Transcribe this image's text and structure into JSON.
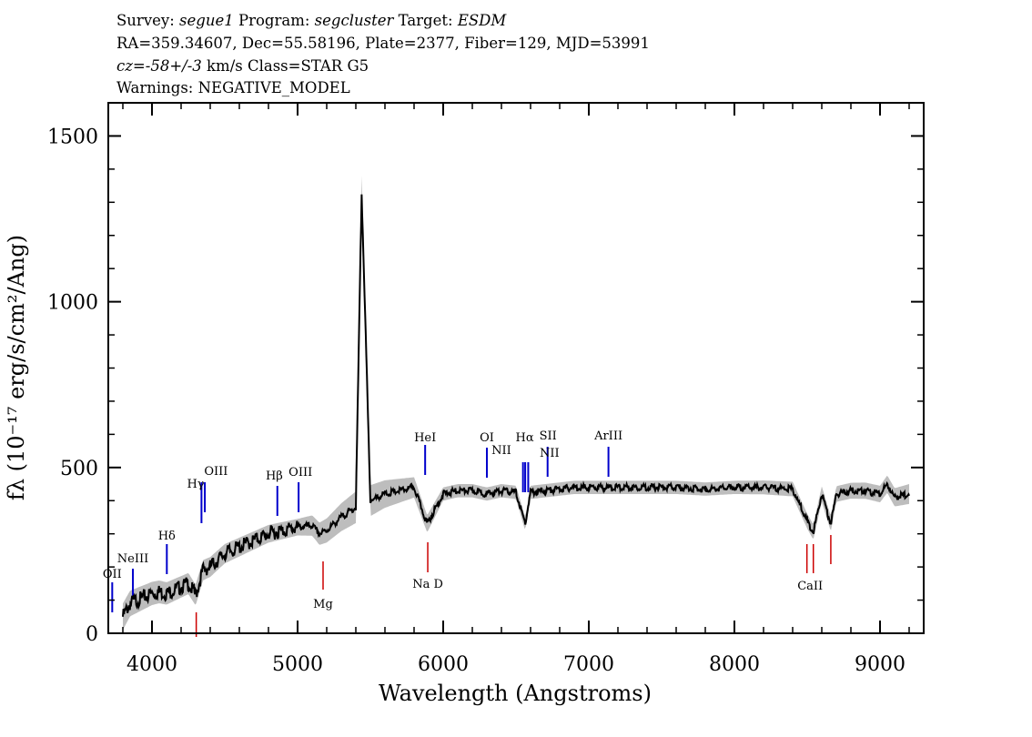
{
  "header": {
    "survey_label": "Survey:",
    "survey": "segue1",
    "program_label": "Program:",
    "program": "segcluster",
    "target_label": "Target:",
    "target": "ESDM",
    "coords": "RA=359.34607, Dec=55.58196, Plate=2377, Fiber=129, MJD=53991",
    "cz": "cz=-58+/-3",
    "cz_units": "km/s",
    "class": "Class=STAR G5",
    "warnings": "Warnings: NEGATIVE_MODEL"
  },
  "chart_data": {
    "type": "line",
    "xlabel": "Wavelength (Angstroms)",
    "ylabel": "fλ (10⁻¹⁷ erg/s/cm²/Ang)",
    "xlim": [
      3700,
      9300
    ],
    "ylim": [
      0,
      1600
    ],
    "xticks": [
      4000,
      5000,
      6000,
      7000,
      8000,
      9000
    ],
    "yticks": [
      0,
      500,
      1000,
      1500
    ],
    "series": [
      {
        "name": "flux",
        "color": "#000000",
        "x": [
          3800,
          3850,
          3900,
          3950,
          4000,
          4050,
          4100,
          4150,
          4200,
          4250,
          4300,
          4350,
          4400,
          4450,
          4500,
          4600,
          4700,
          4800,
          4900,
          5000,
          5100,
          5150,
          5200,
          5300,
          5400,
          5440,
          5500,
          5600,
          5700,
          5800,
          5890,
          6000,
          6100,
          6200,
          6300,
          6400,
          6500,
          6563,
          6600,
          6700,
          6800,
          6900,
          7000,
          7200,
          7400,
          7600,
          7800,
          8000,
          8200,
          8400,
          8498,
          8542,
          8600,
          8662,
          8700,
          8800,
          8900,
          9000,
          9050,
          9100,
          9200
        ],
        "values": [
          50,
          90,
          100,
          110,
          120,
          125,
          120,
          130,
          140,
          150,
          115,
          190,
          200,
          220,
          240,
          260,
          280,
          300,
          310,
          320,
          325,
          300,
          310,
          350,
          380,
          1330,
          400,
          420,
          430,
          440,
          330,
          420,
          430,
          430,
          420,
          430,
          425,
          330,
          425,
          430,
          435,
          440,
          440,
          440,
          440,
          440,
          435,
          440,
          440,
          435,
          340,
          305,
          420,
          330,
          420,
          430,
          430,
          420,
          450,
          410,
          420
        ]
      },
      {
        "name": "error band",
        "color": "#bdbdbd",
        "x": [
          3800,
          4000,
          4400,
          5000,
          5440,
          6000,
          7000,
          8000,
          9000,
          9200
        ],
        "values": [
          40,
          35,
          30,
          25,
          50,
          20,
          20,
          20,
          25,
          30
        ]
      }
    ],
    "emission_lines": [
      {
        "label": "OII",
        "x": 3727
      },
      {
        "label": "NeIII",
        "x": 3869
      },
      {
        "label": "Hδ",
        "x": 4102
      },
      {
        "label": "Hγ",
        "x": 4340
      },
      {
        "label": "OIII",
        "x": 4363
      },
      {
        "label": "Hβ",
        "x": 4861
      },
      {
        "label": "OIII",
        "x": 5007
      },
      {
        "label": "HeI",
        "x": 5876
      },
      {
        "label": "OI",
        "x": 6300
      },
      {
        "label": "NII",
        "x": 6548
      },
      {
        "label": "Hα",
        "x": 6563
      },
      {
        "label": "NII",
        "x": 6584
      },
      {
        "label": "SII",
        "x": 6717
      },
      {
        "label": "ArIII",
        "x": 7135
      }
    ],
    "absorption_lines": [
      {
        "label": "",
        "x": 4304
      },
      {
        "label": "Mg",
        "x": 5175
      },
      {
        "label": "Na D",
        "x": 5894
      },
      {
        "label": "CaII",
        "x": 8500
      },
      {
        "label": "",
        "x": 8542
      },
      {
        "label": "",
        "x": 8662
      }
    ],
    "emission_color": "#0000cc",
    "absorption_color": "#cc0000"
  }
}
